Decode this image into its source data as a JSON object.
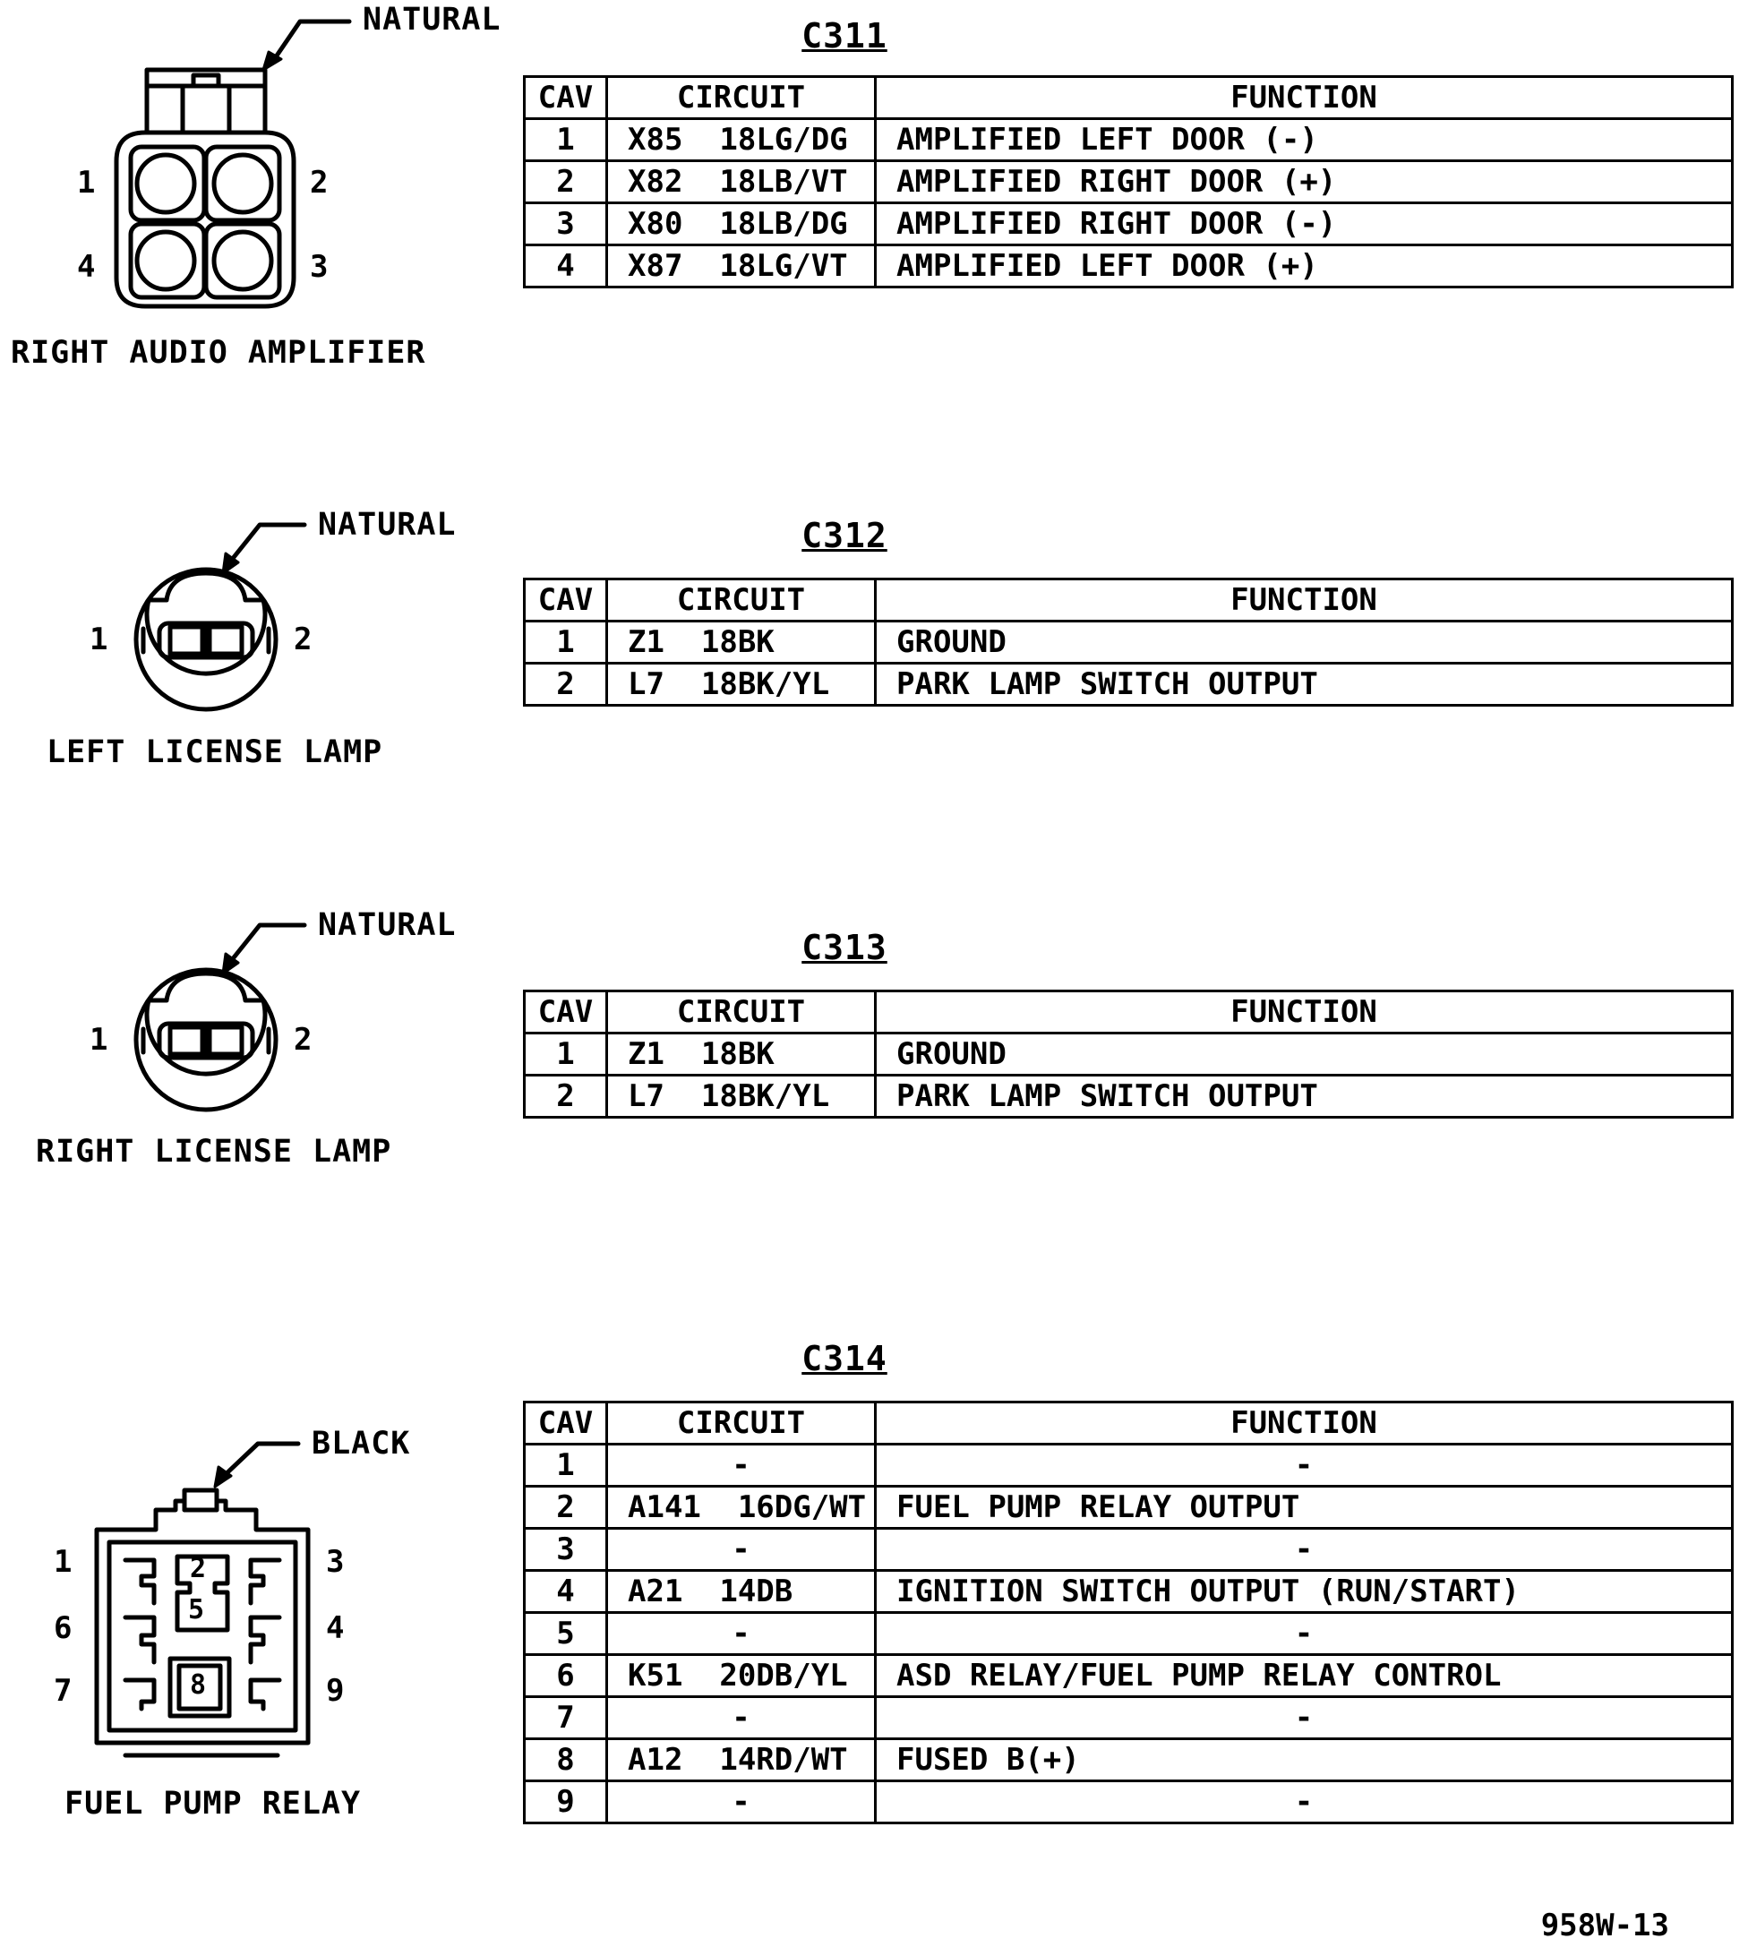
{
  "connectors": [
    {
      "id": "C311",
      "name": "RIGHT AUDIO AMPLIFIER",
      "color": "NATURAL",
      "pin_labels": [
        "1",
        "2",
        "4",
        "3"
      ],
      "headers": {
        "cav": "CAV",
        "circuit": "CIRCUIT",
        "function": "FUNCTION"
      },
      "rows": [
        {
          "cav": "1",
          "circuit": "X85  18LG/DG",
          "function": "AMPLIFIED LEFT DOOR (-)"
        },
        {
          "cav": "2",
          "circuit": "X82  18LB/VT",
          "function": "AMPLIFIED RIGHT DOOR (+)"
        },
        {
          "cav": "3",
          "circuit": "X80  18LB/DG",
          "function": "AMPLIFIED RIGHT DOOR (-)"
        },
        {
          "cav": "4",
          "circuit": "X87  18LG/VT",
          "function": "AMPLIFIED LEFT DOOR (+)"
        }
      ]
    },
    {
      "id": "C312",
      "name": "LEFT LICENSE LAMP",
      "color": "NATURAL",
      "pin_labels": [
        "1",
        "2"
      ],
      "headers": {
        "cav": "CAV",
        "circuit": "CIRCUIT",
        "function": "FUNCTION"
      },
      "rows": [
        {
          "cav": "1",
          "circuit": "Z1  18BK",
          "function": "GROUND"
        },
        {
          "cav": "2",
          "circuit": "L7  18BK/YL",
          "function": "PARK LAMP SWITCH OUTPUT"
        }
      ]
    },
    {
      "id": "C313",
      "name": "RIGHT LICENSE LAMP",
      "color": "NATURAL",
      "pin_labels": [
        "1",
        "2"
      ],
      "headers": {
        "cav": "CAV",
        "circuit": "CIRCUIT",
        "function": "FUNCTION"
      },
      "rows": [
        {
          "cav": "1",
          "circuit": "Z1  18BK",
          "function": "GROUND"
        },
        {
          "cav": "2",
          "circuit": "L7  18BK/YL",
          "function": "PARK LAMP SWITCH OUTPUT"
        }
      ]
    },
    {
      "id": "C314",
      "name": "FUEL PUMP RELAY",
      "color": "BLACK",
      "pin_labels": [
        "1",
        "3",
        "6",
        "4",
        "7",
        "9"
      ],
      "inner_labels": [
        "2",
        "5",
        "8"
      ],
      "headers": {
        "cav": "CAV",
        "circuit": "CIRCUIT",
        "function": "FUNCTION"
      },
      "rows": [
        {
          "cav": "1",
          "circuit": "-",
          "function": "-"
        },
        {
          "cav": "2",
          "circuit": "A141  16DG/WT",
          "function": "FUEL PUMP RELAY OUTPUT"
        },
        {
          "cav": "3",
          "circuit": "-",
          "function": "-"
        },
        {
          "cav": "4",
          "circuit": "A21  14DB",
          "function": "IGNITION SWITCH OUTPUT (RUN/START)"
        },
        {
          "cav": "5",
          "circuit": "-",
          "function": "-"
        },
        {
          "cav": "6",
          "circuit": "K51  20DB/YL",
          "function": "ASD RELAY/FUEL PUMP RELAY CONTROL"
        },
        {
          "cav": "7",
          "circuit": "-",
          "function": "-"
        },
        {
          "cav": "8",
          "circuit": "A12  14RD/WT",
          "function": "FUSED B(+)"
        },
        {
          "cav": "9",
          "circuit": "-",
          "function": "-"
        }
      ]
    }
  ],
  "figure_code": "958W-13"
}
